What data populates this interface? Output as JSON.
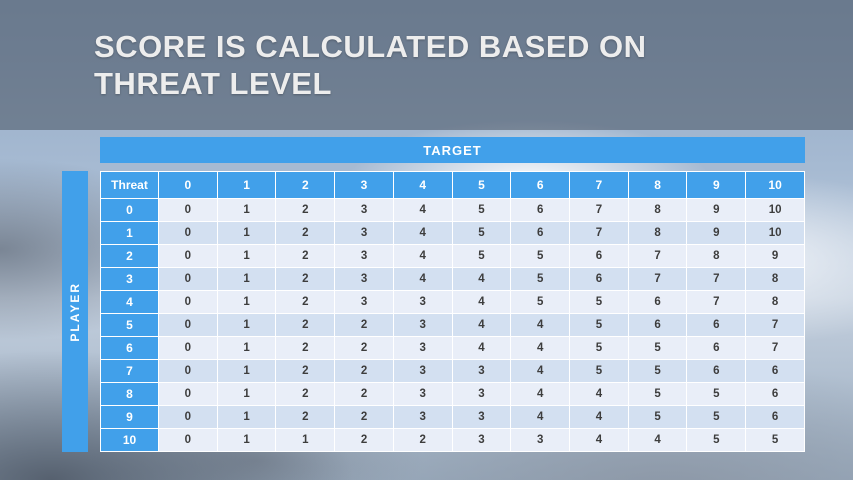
{
  "slide": {
    "title": "SCORE IS CALCULATED BASED ON THREAT LEVEL"
  },
  "table": {
    "target_label": "TARGET",
    "player_label": "PLAYER",
    "corner_label": "Threat"
  },
  "colors": {
    "accent_blue": "#41a0ea",
    "row_band_light": "#e9eef8",
    "row_band_dark": "#d3e0f1",
    "header_text": "#ffffff",
    "cell_text": "#3d3d3d",
    "title_text": "#ededed",
    "title_band": "rgba(72,83,98,0.55)"
  },
  "chart_data": {
    "type": "table",
    "title": "Score is calculated based on threat level",
    "col_header_label": "TARGET",
    "row_header_label": "PLAYER",
    "corner_label": "Threat",
    "columns": [
      "0",
      "1",
      "2",
      "3",
      "4",
      "5",
      "6",
      "7",
      "8",
      "9",
      "10"
    ],
    "rows": [
      "0",
      "1",
      "2",
      "3",
      "4",
      "5",
      "6",
      "7",
      "8",
      "9",
      "10"
    ],
    "values": [
      [
        0,
        1,
        2,
        3,
        4,
        5,
        6,
        7,
        8,
        9,
        10
      ],
      [
        0,
        1,
        2,
        3,
        4,
        5,
        6,
        7,
        8,
        9,
        10
      ],
      [
        0,
        1,
        2,
        3,
        4,
        5,
        5,
        6,
        7,
        8,
        9
      ],
      [
        0,
        1,
        2,
        3,
        4,
        4,
        5,
        6,
        7,
        7,
        8
      ],
      [
        0,
        1,
        2,
        3,
        3,
        4,
        5,
        5,
        6,
        7,
        8
      ],
      [
        0,
        1,
        2,
        2,
        3,
        4,
        4,
        5,
        6,
        6,
        7
      ],
      [
        0,
        1,
        2,
        2,
        3,
        4,
        4,
        5,
        5,
        6,
        7
      ],
      [
        0,
        1,
        2,
        2,
        3,
        3,
        4,
        5,
        5,
        6,
        6
      ],
      [
        0,
        1,
        2,
        2,
        3,
        3,
        4,
        4,
        5,
        5,
        6
      ],
      [
        0,
        1,
        2,
        2,
        3,
        3,
        4,
        4,
        5,
        5,
        6
      ],
      [
        0,
        1,
        1,
        2,
        2,
        3,
        3,
        4,
        4,
        5,
        5
      ]
    ]
  }
}
